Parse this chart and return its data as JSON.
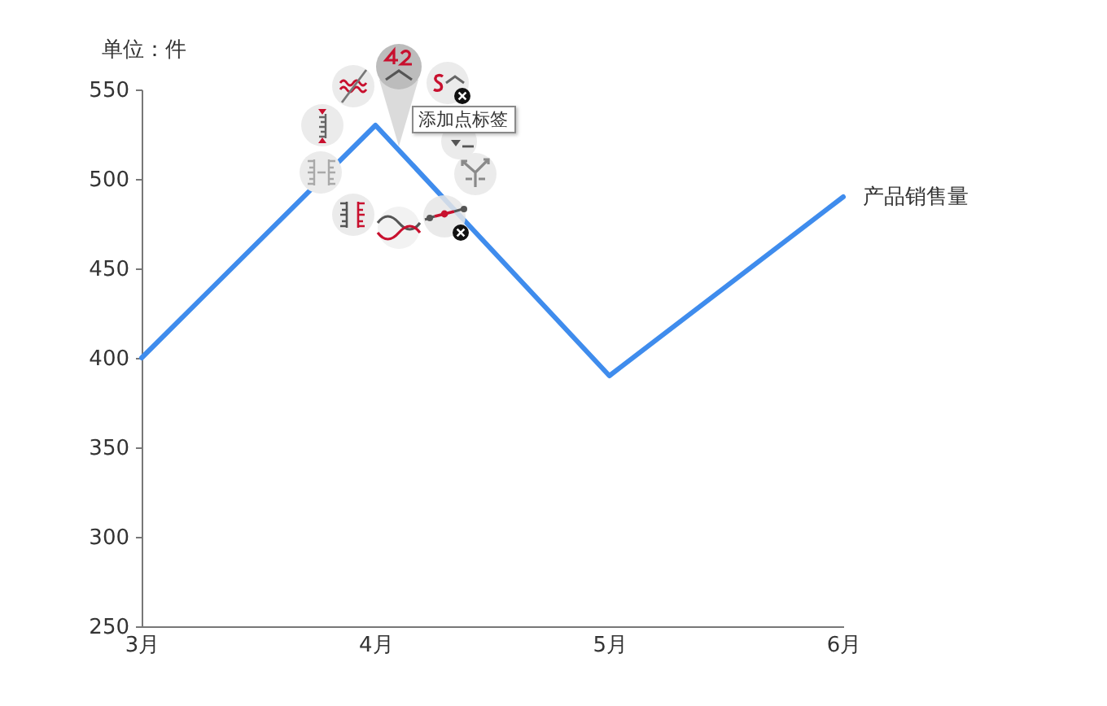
{
  "chart_data": {
    "type": "line",
    "ylabel": "单位：件",
    "categories": [
      "3月",
      "4月",
      "5月",
      "6月"
    ],
    "series": [
      {
        "name": "产品销售量",
        "color": "#3f8ced",
        "values": [
          400,
          530,
          390,
          490
        ]
      }
    ],
    "ylim": [
      250,
      550
    ],
    "yticks": [
      250,
      300,
      350,
      400,
      450,
      500,
      550
    ],
    "annotations": [
      "添加点标签"
    ]
  }
}
